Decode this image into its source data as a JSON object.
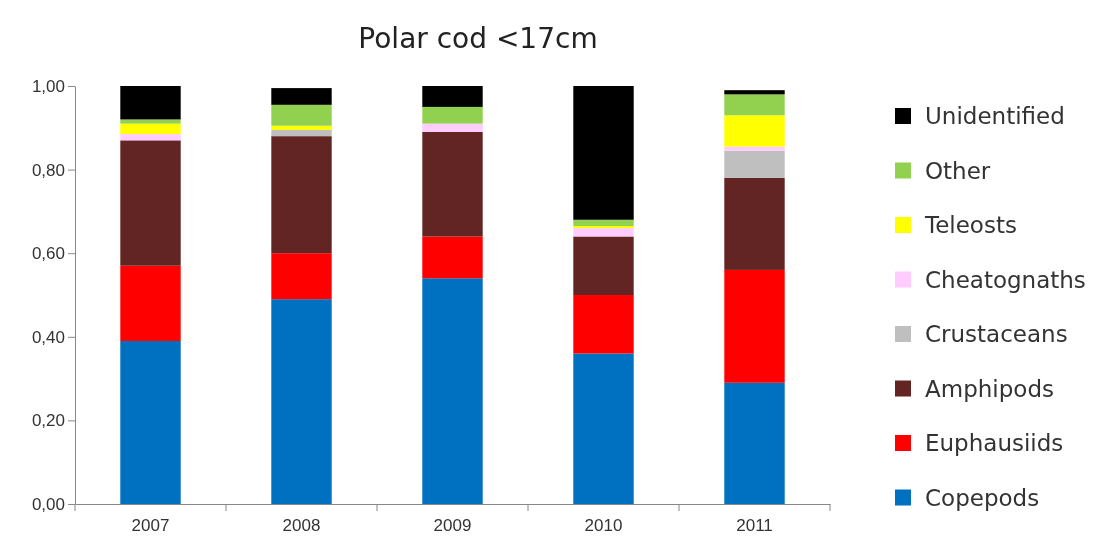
{
  "chart_data": {
    "type": "bar",
    "title": "Polar cod <17cm",
    "stacked": true,
    "legend": "right",
    "categories": [
      "2007",
      "2008",
      "2009",
      "2010",
      "2011"
    ],
    "ylim": [
      0,
      1
    ],
    "yticks": [
      {
        "value": 0,
        "label": "0,00"
      },
      {
        "value": 0.2,
        "label": "0,20"
      },
      {
        "value": 0.4,
        "label": "0,40"
      },
      {
        "value": 0.6,
        "label": "0,60"
      },
      {
        "value": 0.8,
        "label": "0,80"
      },
      {
        "value": 1,
        "label": "1,00"
      }
    ],
    "series": [
      {
        "name": "Copepods",
        "color": "#0070c0",
        "values": [
          0.39,
          0.49,
          0.54,
          0.36,
          0.29
        ]
      },
      {
        "name": "Euphausiids",
        "color": "#ff0000",
        "values": [
          0.18,
          0.11,
          0.1,
          0.14,
          0.27
        ]
      },
      {
        "name": "Amphipods",
        "color": "#632523",
        "values": [
          0.3,
          0.28,
          0.25,
          0.14,
          0.22
        ]
      },
      {
        "name": "Crustaceans",
        "color": "#bfbfbf",
        "values": [
          0,
          0.015,
          0,
          0,
          0.065
        ]
      },
      {
        "name": "Cheatognaths",
        "color": "#ffccff",
        "values": [
          0.015,
          0,
          0.02,
          0.02,
          0.01
        ]
      },
      {
        "name": "Teleosts",
        "color": "#ffff00",
        "values": [
          0.025,
          0.01,
          0,
          0.005,
          0.075
        ]
      },
      {
        "name": "Other",
        "color": "#92d050",
        "values": [
          0.01,
          0.05,
          0.04,
          0.015,
          0.05
        ]
      },
      {
        "name": "Unidentified",
        "color": "#000000",
        "values": [
          0.08,
          0.04,
          0.05,
          0.32,
          0.01
        ]
      }
    ]
  }
}
